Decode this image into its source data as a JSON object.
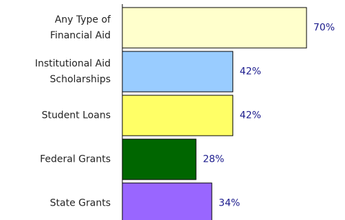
{
  "chart_data": {
    "type": "bar",
    "orientation": "horizontal",
    "categories": [
      "Any Type of Financial Aid",
      "Institutional Aid Scholarships",
      "Student Loans",
      "Federal Grants",
      "State Grants"
    ],
    "category_lines": [
      [
        "Any Type of",
        "Financial Aid"
      ],
      [
        "Institutional Aid",
        "Scholarships"
      ],
      [
        "Student Loans"
      ],
      [
        "Federal Grants"
      ],
      [
        "State Grants"
      ]
    ],
    "values": [
      70,
      42,
      42,
      28,
      34
    ],
    "value_labels": [
      "70%",
      "42%",
      "42%",
      "28%",
      "34%"
    ],
    "colors": [
      "#ffffcc",
      "#99ccff",
      "#ffff66",
      "#006600",
      "#9966ff"
    ],
    "xlim": [
      0,
      100
    ],
    "grid": false,
    "legend": "none",
    "title": "",
    "xlabel": "",
    "ylabel": ""
  }
}
